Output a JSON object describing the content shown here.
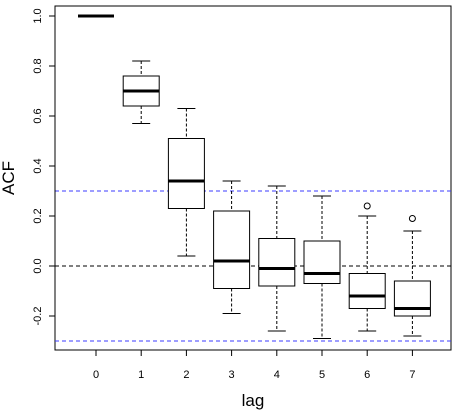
{
  "chart_data": {
    "type": "box",
    "xlabel": "lag",
    "ylabel": "ACF",
    "categories": [
      "0",
      "1",
      "2",
      "3",
      "4",
      "5",
      "6",
      "7"
    ],
    "ylim": [
      -0.33,
      1.05
    ],
    "yticks": [
      -0.2,
      0.0,
      0.2,
      0.4,
      0.6,
      0.8,
      1.0
    ],
    "ytick_labels": [
      "-0.2",
      "0.0",
      "0.2",
      "0.4",
      "0.6",
      "0.8",
      "1.0"
    ],
    "boxes": [
      {
        "lag": "0",
        "whisker_low": 1.0,
        "q1": 1.0,
        "median": 1.0,
        "q3": 1.0,
        "whisker_high": 1.0,
        "outliers": []
      },
      {
        "lag": "1",
        "whisker_low": 0.57,
        "q1": 0.64,
        "median": 0.7,
        "q3": 0.76,
        "whisker_high": 0.82,
        "outliers": []
      },
      {
        "lag": "2",
        "whisker_low": 0.04,
        "q1": 0.23,
        "median": 0.34,
        "q3": 0.51,
        "whisker_high": 0.63,
        "outliers": []
      },
      {
        "lag": "3",
        "whisker_low": -0.19,
        "q1": -0.09,
        "median": 0.02,
        "q3": 0.22,
        "whisker_high": 0.34,
        "outliers": []
      },
      {
        "lag": "4",
        "whisker_low": -0.26,
        "q1": -0.08,
        "median": -0.01,
        "q3": 0.11,
        "whisker_high": 0.32,
        "outliers": []
      },
      {
        "lag": "5",
        "whisker_low": -0.29,
        "q1": -0.07,
        "median": -0.03,
        "q3": 0.1,
        "whisker_high": 0.28,
        "outliers": []
      },
      {
        "lag": "6",
        "whisker_low": -0.26,
        "q1": -0.17,
        "median": -0.12,
        "q3": -0.03,
        "whisker_high": 0.2,
        "outliers": [
          0.24
        ]
      },
      {
        "lag": "7",
        "whisker_low": -0.28,
        "q1": -0.2,
        "median": -0.17,
        "q3": -0.06,
        "whisker_high": 0.14,
        "outliers": [
          0.19
        ]
      }
    ],
    "reference_lines": [
      {
        "y": 0.3,
        "color": "#3b3bff",
        "style": "dashed"
      },
      {
        "y": -0.3,
        "color": "#3b3bff",
        "style": "dashed"
      },
      {
        "y": 0.0,
        "color": "#000000",
        "style": "dashed"
      }
    ],
    "grid": false,
    "legend": "none"
  }
}
